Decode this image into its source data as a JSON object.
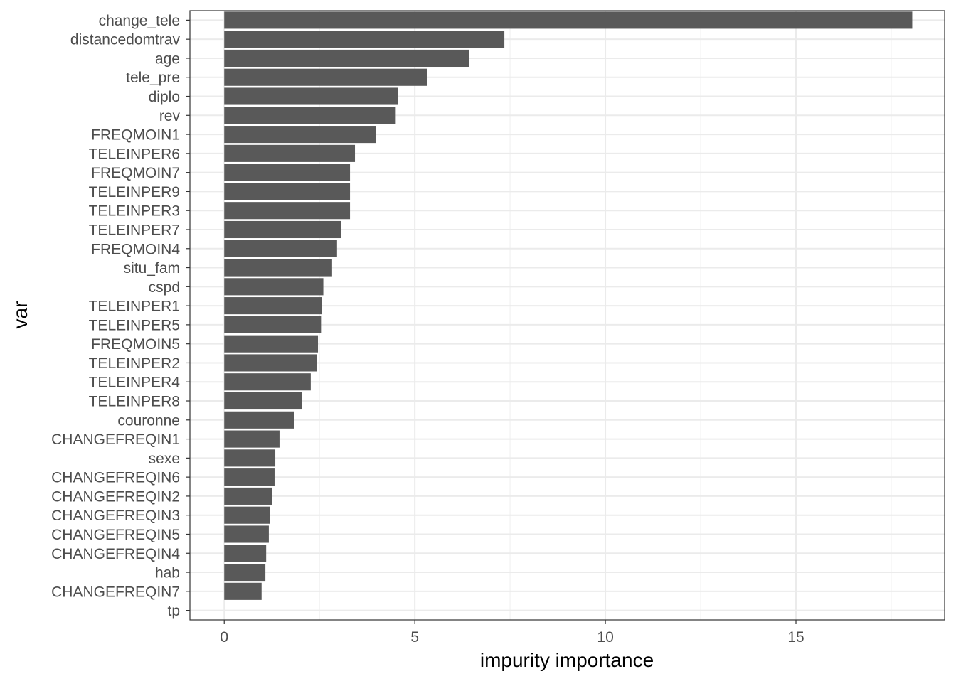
{
  "chart_data": {
    "type": "bar",
    "orientation": "horizontal",
    "xlabel": "impurity importance",
    "ylabel": "var",
    "xlim": [
      -0.9,
      18.9
    ],
    "x_ticks": [
      0,
      5,
      10,
      15
    ],
    "x_tick_labels": [
      "0",
      "5",
      "10",
      "15"
    ],
    "grid": true,
    "colors": {
      "bar": "#595959",
      "grid_major": "#ebebeb",
      "grid_minor": "#f2f2f2",
      "panel_border": "#333333",
      "text": "#4d4d4d",
      "title_text": "#000000"
    },
    "categories": [
      "change_tele",
      "distancedomtrav",
      "age",
      "tele_pre",
      "diplo",
      "rev",
      "FREQMOIN1",
      "TELEINPER6",
      "FREQMOIN7",
      "TELEINPER9",
      "TELEINPER3",
      "TELEINPER7",
      "FREQMOIN4",
      "situ_fam",
      "cspd",
      "TELEINPER1",
      "TELEINPER5",
      "FREQMOIN5",
      "TELEINPER2",
      "TELEINPER4",
      "TELEINPER8",
      "couronne",
      "CHANGEFREQIN1",
      "sexe",
      "CHANGEFREQIN6",
      "CHANGEFREQIN2",
      "CHANGEFREQIN3",
      "CHANGEFREQIN5",
      "CHANGEFREQIN4",
      "hab",
      "CHANGEFREQIN7",
      "tp"
    ],
    "values": [
      18.05,
      7.35,
      6.43,
      5.32,
      4.55,
      4.5,
      3.98,
      3.43,
      3.3,
      3.3,
      3.3,
      3.06,
      2.96,
      2.83,
      2.6,
      2.56,
      2.54,
      2.46,
      2.44,
      2.27,
      2.03,
      1.84,
      1.45,
      1.34,
      1.32,
      1.25,
      1.2,
      1.17,
      1.1,
      1.08,
      0.98,
      0.0
    ]
  }
}
